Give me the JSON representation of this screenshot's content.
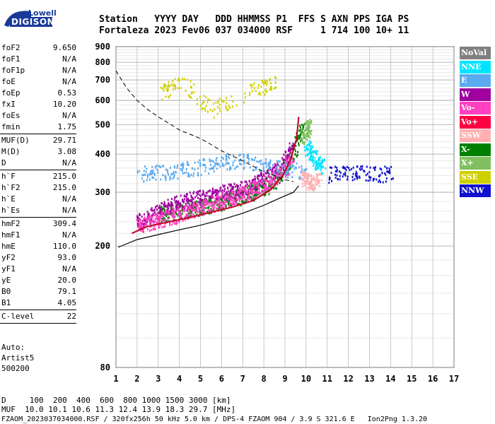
{
  "logo": {
    "top": "Lowell",
    "bottom": "DIGISONDE"
  },
  "header": {
    "line1": "Station   YYYY DAY   DDD HHMMSS P1  FFS S AXN PPS IGA PS",
    "line2": "Fortaleza 2023 Fev06 037 034000 RSF     1 714 100 10+ 11"
  },
  "params": [
    {
      "k": "foF2",
      "v": "9.650"
    },
    {
      "k": "foF1",
      "v": "N/A"
    },
    {
      "k": "foF1p",
      "v": "N/A"
    },
    {
      "k": "foE",
      "v": "N/A"
    },
    {
      "k": "foEp",
      "v": "0.53"
    },
    {
      "k": "fxI",
      "v": "10.20"
    },
    {
      "k": "foEs",
      "v": "N/A"
    },
    {
      "k": "fmin",
      "v": "1.75"
    },
    {
      "k": "MUF(D)",
      "v": "29.71"
    },
    {
      "k": "M(D)",
      "v": "3.08"
    },
    {
      "k": "D",
      "v": "N/A"
    },
    {
      "k": "h`F",
      "v": "215.0"
    },
    {
      "k": "h`F2",
      "v": "215.0"
    },
    {
      "k": "h`E",
      "v": "N/A"
    },
    {
      "k": "h`Es",
      "v": "N/A"
    },
    {
      "k": "hmF2",
      "v": "309.4"
    },
    {
      "k": "hmF1",
      "v": "N/A"
    },
    {
      "k": "hmE",
      "v": "110.0"
    },
    {
      "k": "yF2",
      "v": "93.0"
    },
    {
      "k": "yF1",
      "v": "N/A"
    },
    {
      "k": "yE",
      "v": "20.0"
    },
    {
      "k": "B0",
      "v": "79.1"
    },
    {
      "k": "B1",
      "v": "4.05"
    },
    {
      "k": "C-level",
      "v": "22"
    }
  ],
  "auto": [
    "Auto:",
    "Artist5",
    "500200"
  ],
  "footer": {
    "line1": "D     100  200  400  600  800 1000 1500 3000 [km]",
    "line2": "MUF  10.0 10.1 10.6 11.3 12.4 13.9 18.3 29.7 [MHz]",
    "line3": "FZAOM_2023037034000.RSF / 320fx256h 50 kHz 5.0 km / DPS-4 FZAOM 904 / 3.9 S 321.6 E   Ion2Png 1.3.20"
  },
  "legend": [
    {
      "label": "NoVal",
      "color": "#808080"
    },
    {
      "label": "NNE",
      "color": "#00e5ff"
    },
    {
      "label": "E",
      "color": "#5aaaf0"
    },
    {
      "label": "W",
      "color": "#a000a0"
    },
    {
      "label": "Vo-",
      "color": "#ff40c0"
    },
    {
      "label": "Vo+",
      "color": "#ff0040"
    },
    {
      "label": "SSW",
      "color": "#ffb0b0"
    },
    {
      "label": "X-",
      "color": "#008000"
    },
    {
      "label": "X+",
      "color": "#80c060"
    },
    {
      "label": "SSE",
      "color": "#d0d000"
    },
    {
      "label": "NNW",
      "color": "#1010d0"
    }
  ],
  "chart_data": {
    "type": "scatter",
    "xlabel": "",
    "ylabel": "",
    "xlim": [
      1,
      17
    ],
    "ylim": [
      80,
      900
    ],
    "y_scale": "log",
    "xticks": [
      1,
      2,
      3,
      4,
      5,
      6,
      7,
      8,
      9,
      10,
      11,
      12,
      13,
      14,
      15,
      16,
      17
    ],
    "yticks": [
      80,
      200,
      300,
      400,
      500,
      600,
      700,
      800,
      900
    ],
    "grid": true,
    "traces": {
      "o_trace_model": {
        "x": [
          1.75,
          2.5,
          3.5,
          4.5,
          5.5,
          6.5,
          7.5,
          8.3,
          8.9,
          9.3,
          9.55,
          9.65
        ],
        "y": [
          220,
          232,
          240,
          248,
          258,
          268,
          282,
          305,
          340,
          390,
          450,
          530
        ]
      },
      "x_trace_model": {
        "x": [
          1.1,
          2,
          3,
          4,
          5,
          6,
          7,
          8,
          8.8,
          9.4,
          9.65
        ],
        "y": [
          198,
          210,
          218,
          226,
          234,
          244,
          256,
          272,
          288,
          300,
          315
        ]
      },
      "muf_curve": {
        "x": [
          1.0,
          1.5,
          2.0,
          2.5,
          3.0,
          3.5,
          4.0,
          4.5,
          5.0,
          5.5,
          6.0,
          6.5,
          7.0,
          7.5,
          8.0,
          8.5,
          9.0,
          9.4
        ],
        "y": [
          750,
          660,
          600,
          560,
          530,
          505,
          480,
          465,
          450,
          430,
          410,
          395,
          380,
          365,
          350,
          340,
          330,
          325
        ]
      }
    },
    "echo_groups": [
      {
        "name": "X-",
        "color": "#008000",
        "points": [
          [
            3.0,
            255
          ],
          [
            3.5,
            258
          ],
          [
            4.0,
            262
          ],
          [
            4.5,
            266
          ],
          [
            5.0,
            270
          ],
          [
            5.5,
            275
          ],
          [
            6.0,
            281
          ],
          [
            6.5,
            287
          ],
          [
            7.0,
            294
          ],
          [
            7.5,
            302
          ],
          [
            8.0,
            313
          ],
          [
            8.5,
            330
          ],
          [
            9.0,
            360
          ],
          [
            9.3,
            395
          ],
          [
            9.6,
            450
          ],
          [
            9.9,
            500
          ]
        ]
      },
      {
        "name": "W",
        "color": "#a000a0",
        "points": [
          [
            2.0,
            240
          ],
          [
            2.5,
            250
          ],
          [
            3.0,
            262
          ],
          [
            3.5,
            272
          ],
          [
            4.0,
            280
          ],
          [
            4.5,
            285
          ],
          [
            5.0,
            290
          ],
          [
            5.5,
            295
          ],
          [
            6.0,
            300
          ],
          [
            6.5,
            305
          ],
          [
            7.0,
            312
          ],
          [
            7.5,
            322
          ],
          [
            8.0,
            335
          ],
          [
            8.5,
            352
          ],
          [
            9.0,
            380
          ],
          [
            9.3,
            420
          ]
        ]
      },
      {
        "name": "Vo-",
        "color": "#ff40c0",
        "points": [
          [
            2.0,
            232
          ],
          [
            2.5,
            238
          ],
          [
            3.0,
            245
          ],
          [
            3.5,
            250
          ],
          [
            4.0,
            256
          ],
          [
            4.5,
            262
          ],
          [
            5.0,
            268
          ],
          [
            5.5,
            275
          ],
          [
            6.0,
            282
          ],
          [
            6.5,
            290
          ],
          [
            7.0,
            298
          ],
          [
            7.5,
            308
          ],
          [
            8.0,
            320
          ],
          [
            8.5,
            336
          ],
          [
            9.0,
            362
          ],
          [
            9.3,
            395
          ]
        ]
      },
      {
        "name": "E",
        "color": "#5aaaf0",
        "points": [
          [
            2.0,
            345
          ],
          [
            3.0,
            350
          ],
          [
            4.0,
            355
          ],
          [
            5.0,
            365
          ],
          [
            6.0,
            375
          ],
          [
            7.0,
            385
          ],
          [
            8.0,
            370
          ],
          [
            9.0,
            360
          ],
          [
            10.0,
            350
          ]
        ]
      },
      {
        "name": "NNE",
        "color": "#00e5ff",
        "points": [
          [
            10.0,
            430
          ],
          [
            10.2,
            410
          ],
          [
            10.5,
            380
          ],
          [
            10.8,
            360
          ]
        ]
      },
      {
        "name": "SSW",
        "color": "#ffb0b0",
        "points": [
          [
            9.8,
            340
          ],
          [
            10.0,
            330
          ],
          [
            10.3,
            325
          ],
          [
            10.6,
            335
          ]
        ]
      },
      {
        "name": "NNW",
        "color": "#1010d0",
        "points": [
          [
            11.0,
            345
          ],
          [
            12.0,
            348
          ],
          [
            13.0,
            348
          ],
          [
            14.0,
            346
          ]
        ]
      },
      {
        "name": "X+",
        "color": "#80c060",
        "points": [
          [
            9.8,
            460
          ],
          [
            10.0,
            480
          ],
          [
            10.2,
            500
          ]
        ]
      },
      {
        "name": "SSE",
        "color": "#d0d000",
        "points": [
          [
            3.2,
            640
          ],
          [
            4.0,
            700
          ],
          [
            5.5,
            560
          ],
          [
            7.5,
            650
          ],
          [
            8.5,
            690
          ]
        ]
      }
    ]
  }
}
